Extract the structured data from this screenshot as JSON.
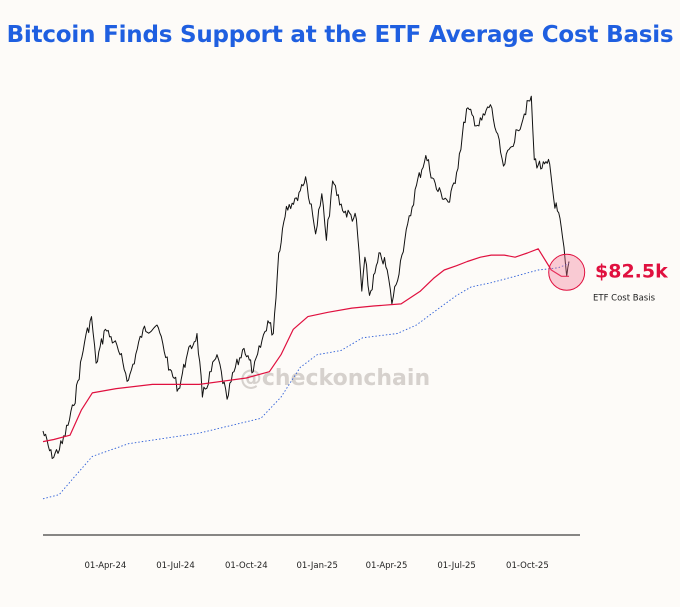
{
  "chart_data": {
    "type": "line",
    "title": "Bitcoin Finds Support at the ETF Average Cost Basis",
    "xlabel": "",
    "ylabel": "",
    "x_tick_labels": [
      "01-Apr-24",
      "01-Jul-24",
      "01-Oct-24",
      "01-Jan-25",
      "01-Apr-25",
      "01-Jul-25",
      "01-Oct-25"
    ],
    "x_range": [
      "2024-01-11",
      "2025-11-24"
    ],
    "ylim": [
      25000,
      130000
    ],
    "grid": false,
    "watermark": "@checkonchain",
    "series": [
      {
        "role": "price",
        "color": "#111111",
        "style": "solid",
        "x": [
          "2024-01-11",
          "2024-01-23",
          "2024-02-05",
          "2024-02-20",
          "2024-03-05",
          "2024-03-14",
          "2024-03-20",
          "2024-04-01",
          "2024-04-12",
          "2024-04-20",
          "2024-05-01",
          "2024-05-20",
          "2024-06-07",
          "2024-06-24",
          "2024-07-05",
          "2024-07-15",
          "2024-07-29",
          "2024-08-05",
          "2024-08-24",
          "2024-09-06",
          "2024-09-15",
          "2024-09-28",
          "2024-10-10",
          "2024-10-29",
          "2024-11-05",
          "2024-11-12",
          "2024-11-22",
          "2024-12-05",
          "2024-12-17",
          "2024-12-30",
          "2025-01-07",
          "2025-01-13",
          "2025-01-21",
          "2025-02-03",
          "2025-02-21",
          "2025-02-28",
          "2025-03-04",
          "2025-03-10",
          "2025-03-24",
          "2025-04-02",
          "2025-04-08",
          "2025-04-21",
          "2025-05-10",
          "2025-05-22",
          "2025-06-05",
          "2025-06-22",
          "2025-07-01",
          "2025-07-14",
          "2025-07-30",
          "2025-08-14",
          "2025-08-31",
          "2025-09-18",
          "2025-10-06",
          "2025-10-10",
          "2025-10-20",
          "2025-10-30",
          "2025-11-04",
          "2025-11-14",
          "2025-11-21",
          "2025-11-24"
        ],
        "values": [
          46000,
          39500,
          43000,
          52000,
          67000,
          73000,
          62000,
          70000,
          67000,
          64000,
          58000,
          70000,
          71000,
          60500,
          56000,
          63000,
          69000,
          54000,
          64000,
          53500,
          60000,
          65500,
          60000,
          72000,
          69000,
          88000,
          99000,
          101000,
          106000,
          92500,
          102000,
          91000,
          105000,
          98000,
          96000,
          79000,
          87000,
          78000,
          88000,
          84000,
          76000,
          87500,
          104000,
          111000,
          103000,
          100000,
          107000,
          122000,
          118000,
          123000,
          108500,
          117000,
          125000,
          110000,
          108000,
          109000,
          101000,
          94000,
          82500,
          86000
        ]
      },
      {
        "name": "ETF Cost Basis",
        "role": "etf-cost-basis",
        "color": "#e0103f",
        "style": "solid",
        "x": [
          "2024-01-11",
          "2024-01-25",
          "2024-02-15",
          "2024-03-01",
          "2024-03-15",
          "2024-04-15",
          "2024-06-01",
          "2024-08-01",
          "2024-10-01",
          "2024-10-31",
          "2024-11-15",
          "2024-12-01",
          "2024-12-20",
          "2025-01-15",
          "2025-02-15",
          "2025-03-15",
          "2025-04-20",
          "2025-05-15",
          "2025-06-01",
          "2025-06-15",
          "2025-07-01",
          "2025-07-15",
          "2025-08-01",
          "2025-08-15",
          "2025-09-01",
          "2025-09-15",
          "2025-10-01",
          "2025-10-15",
          "2025-11-01",
          "2025-11-14",
          "2025-11-24"
        ],
        "values": [
          43500,
          44000,
          45000,
          51000,
          55000,
          56000,
          57000,
          57000,
          58500,
          60000,
          64000,
          70000,
          73000,
          74000,
          75000,
          75500,
          76000,
          79000,
          82000,
          84000,
          85000,
          86000,
          87000,
          87500,
          87500,
          87000,
          88000,
          89000,
          84000,
          82500,
          82500
        ]
      },
      {
        "role": "lower-band",
        "color": "#2e5fd8",
        "style": "dotted",
        "x": [
          "2024-01-11",
          "2024-02-01",
          "2024-02-20",
          "2024-03-15",
          "2024-05-01",
          "2024-08-01",
          "2024-10-20",
          "2024-11-15",
          "2024-12-10",
          "2025-01-01",
          "2025-02-01",
          "2025-03-01",
          "2025-04-15",
          "2025-05-10",
          "2025-06-01",
          "2025-07-01",
          "2025-07-20",
          "2025-08-15",
          "2025-09-15",
          "2025-10-15",
          "2025-11-10",
          "2025-11-24"
        ],
        "values": [
          30000,
          31000,
          35000,
          40000,
          43000,
          45500,
          49000,
          54000,
          61000,
          64000,
          65000,
          68000,
          69000,
          71000,
          74000,
          78000,
          80000,
          81000,
          82500,
          84000,
          84500,
          85500
        ]
      }
    ],
    "annotations": [
      {
        "text": "$82.5k",
        "target_series": "etf-cost-basis",
        "x": "2025-11-21",
        "y": 82500,
        "marker": "circle"
      },
      {
        "text": "ETF Cost Basis",
        "target_series": "etf-cost-basis"
      }
    ]
  }
}
